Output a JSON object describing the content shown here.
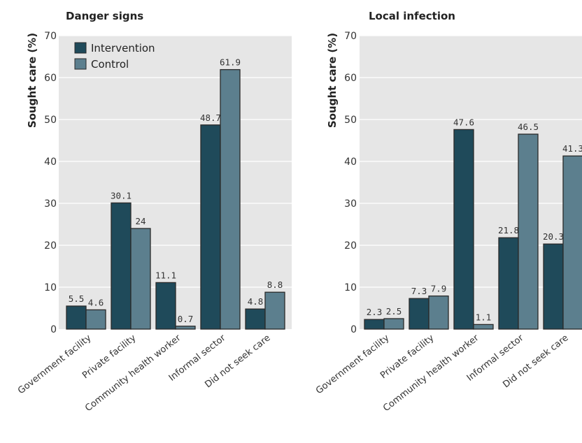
{
  "chart_data": [
    {
      "type": "bar",
      "title": "Danger signs",
      "ylabel": "Sought care (%)",
      "ylim": [
        0,
        70
      ],
      "yticks": [
        0,
        10,
        20,
        30,
        40,
        50,
        60,
        70
      ],
      "grid": true,
      "legend": "top-left",
      "categories": [
        "Government facility",
        "Private facility",
        "Community health worker",
        "Informal sector",
        "Did not seek care"
      ],
      "series": [
        {
          "name": "Intervention",
          "color": "#1f4a5a",
          "values": [
            5.5,
            30.1,
            11.1,
            48.7,
            4.8
          ],
          "labels": [
            "5.5",
            "30.1",
            "11.1",
            "48.7",
            "4.8"
          ]
        },
        {
          "name": "Control",
          "color": "#5c7f8e",
          "values": [
            4.6,
            24,
            0.7,
            61.9,
            8.8
          ],
          "labels": [
            "4.6",
            "24",
            "0.7",
            "61.9",
            "8.8"
          ]
        }
      ]
    },
    {
      "type": "bar",
      "title": "Local infection",
      "ylabel": "Sought care (%)",
      "ylim": [
        0,
        70
      ],
      "yticks": [
        0,
        10,
        20,
        30,
        40,
        50,
        60,
        70
      ],
      "grid": true,
      "legend": "none",
      "categories": [
        "Government facility",
        "Private facility",
        "Community health worker",
        "Informal sector",
        "Did not seek care"
      ],
      "series": [
        {
          "name": "Intervention",
          "color": "#1f4a5a",
          "values": [
            2.3,
            7.3,
            47.6,
            21.8,
            20.3
          ],
          "labels": [
            "2.3",
            "7.3",
            "47.6",
            "21.8",
            "20.3"
          ]
        },
        {
          "name": "Control",
          "color": "#5c7f8e",
          "values": [
            2.5,
            7.9,
            1.1,
            46.5,
            41.3
          ],
          "labels": [
            "2.5",
            "7.9",
            "1.1",
            "46.5",
            "41.3"
          ]
        }
      ]
    }
  ],
  "colors": {
    "plot_background": "#e6e6e6",
    "gridline": "#ffffff",
    "bar_outline": "#2a2a2a"
  }
}
